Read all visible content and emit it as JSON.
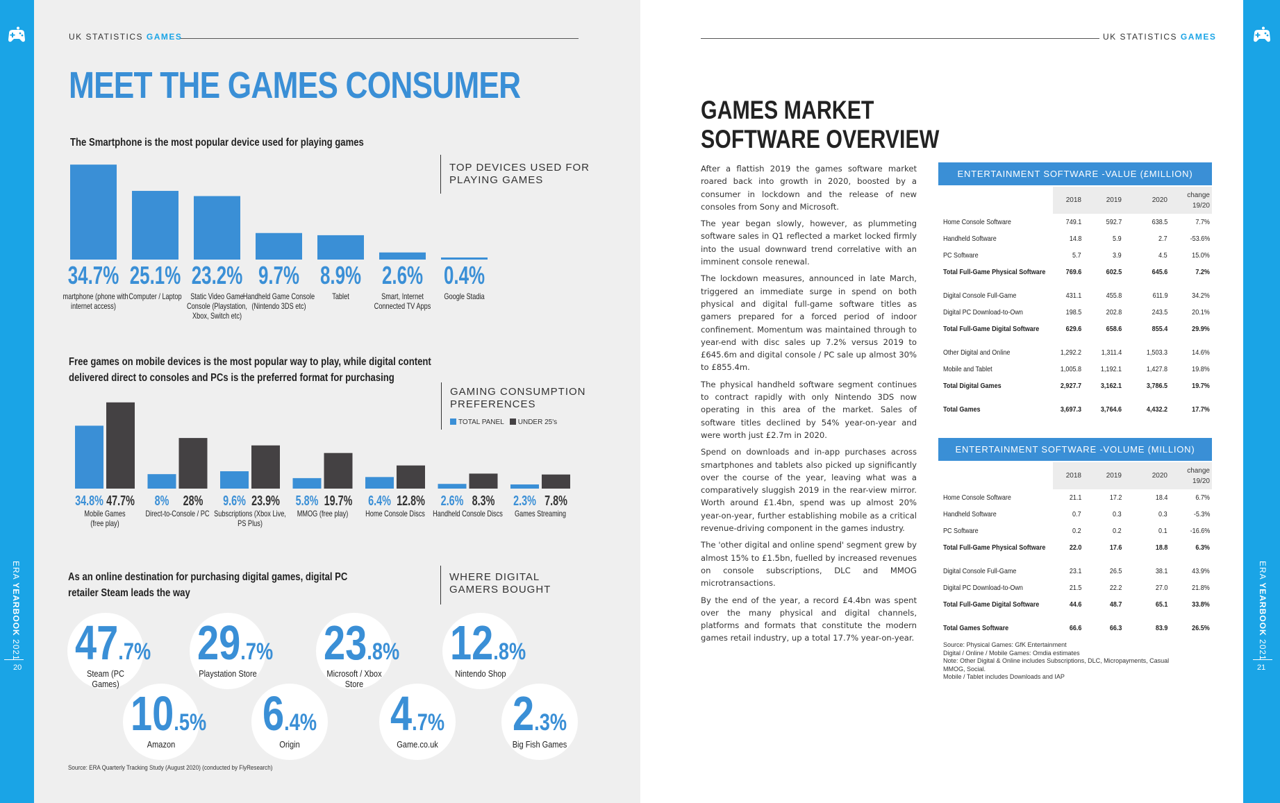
{
  "left_page": {
    "header": {
      "prefix": "UK STATISTICS ",
      "accent": "GAMES"
    },
    "title": "MEET THE GAMES CONSUMER",
    "page_number": "20",
    "sidebar": {
      "era": "ERA ",
      "yearbook": "YEARBOOK",
      "year": " 2021"
    },
    "section1": {
      "title": "The Smartphone is the most popular device used for playing games",
      "box_label": [
        "TOP DEVICES USED FOR",
        "PLAYING GAMES"
      ]
    },
    "section2": {
      "title": [
        "Free games on mobile devices is the most popular way to play, while digital content",
        "delivered direct to consoles and PCs is the preferred format for purchasing"
      ],
      "box_label": [
        "GAMING CONSUMPTION",
        "PREFERENCES"
      ],
      "legend": [
        "TOTAL PANEL",
        "UNDER 25's"
      ]
    },
    "section3": {
      "title": [
        "As an online destination for purchasing digital games, digital PC",
        "retailer Steam leads the way"
      ],
      "box_label": [
        "WHERE DIGITAL",
        "GAMERS BOUGHT"
      ]
    },
    "source": "Source: ERA Quarterly Tracking Study (August 2020) (conducted by FlyResearch)"
  },
  "chart_data": [
    {
      "type": "bar",
      "title": "TOP DEVICES USED FOR PLAYING GAMES",
      "categories": [
        "Smartphone (phone with internet access)",
        "Computer / Laptop",
        "Static Video Game Console (Playstation, Xbox, Switch etc)",
        "Handheld Game Console (Nintendo 3DS etc)",
        "Tablet",
        "Smart, Internet Connected TV Apps",
        "Google Stadia"
      ],
      "labels": [
        [
          "Smartphone (phone with",
          "internet access)"
        ],
        [
          "Computer / Laptop"
        ],
        [
          "Static Video Game",
          "Console (Playstation,",
          "Xbox, Switch etc)"
        ],
        [
          "Handheld Game Console",
          "(Nintendo 3DS etc)"
        ],
        [
          "Tablet"
        ],
        [
          "Smart, Internet",
          "Connected TV Apps"
        ],
        [
          "Google Stadia"
        ]
      ],
      "values": [
        34.7,
        25.1,
        23.2,
        9.7,
        8.9,
        2.6,
        0.4
      ],
      "value_labels": [
        "34.7%",
        "25.1%",
        "23.2%",
        "9.7%",
        "8.9%",
        "2.6%",
        "0.4%"
      ],
      "color": "#3a8fd6"
    },
    {
      "type": "bar",
      "title": "GAMING CONSUMPTION PREFERENCES",
      "categories": [
        "Mobile Games (free play)",
        "Direct-to-Console / PC",
        "Subscriptions (Xbox Live, PS Plus)",
        "MMOG (free play)",
        "Home Console Discs",
        "Handheld Console Discs",
        "Games Streaming"
      ],
      "labels": [
        [
          "Mobile Games",
          "(free play)"
        ],
        [
          "Direct-to-Console / PC"
        ],
        [
          "Subscriptions (Xbox Live,",
          "PS Plus)"
        ],
        [
          "MMOG (free play)"
        ],
        [
          "Home Console Discs"
        ],
        [
          "Handheld Console Discs"
        ],
        [
          "Games Streaming"
        ]
      ],
      "series": [
        {
          "name": "TOTAL PANEL",
          "values": [
            34.8,
            8,
            9.6,
            5.8,
            6.4,
            2.6,
            2.3
          ],
          "labels": [
            "34.8%",
            "8%",
            "9.6%",
            "5.8%",
            "6.4%",
            "2.6%",
            "2.3%"
          ],
          "color": "#3a8fd6"
        },
        {
          "name": "UNDER 25's",
          "values": [
            47.7,
            28,
            23.9,
            19.7,
            12.8,
            8.3,
            7.8
          ],
          "labels": [
            "47.7%",
            "28%",
            "23.9%",
            "19.7%",
            "12.8%",
            "8.3%",
            "7.8%"
          ],
          "color": "#444143"
        }
      ]
    }
  ],
  "retailers": [
    {
      "big": "47",
      "small": ".7%",
      "name": "Steam (PC Games)"
    },
    {
      "big": "29",
      "small": ".7%",
      "name": "Playstation Store"
    },
    {
      "big": "23",
      "small": ".8%",
      "name": "Microsoft / Xbox Store"
    },
    {
      "big": "12",
      "small": ".8%",
      "name": "Nintendo Shop"
    },
    {
      "big": "10",
      "small": ".5%",
      "name": "Amazon"
    },
    {
      "big": "6",
      "small": ".4%",
      "name": "Origin"
    },
    {
      "big": "4",
      "small": ".7%",
      "name": "Game.co.uk"
    },
    {
      "big": "2",
      "small": ".3%",
      "name": "Big Fish Games"
    }
  ],
  "right_page": {
    "header": {
      "prefix": "UK STATISTICS ",
      "accent": "GAMES"
    },
    "title": [
      "GAMES MARKET",
      "SOFTWARE OVERVIEW"
    ],
    "page_number": "21",
    "sidebar": {
      "era": "ERA ",
      "yearbook": "YEARBOOK",
      "year": " 2021"
    },
    "paragraphs": [
      "After a flattish 2019 the games software market roared back into growth in 2020, boosted by a consumer in lockdown and the release of new consoles from Sony and Microsoft.",
      "The year began slowly, however, as plummeting software sales in Q1 reflected a market locked firmly into the usual downward trend correlative with an imminent console renewal.",
      "The lockdown measures, announced in late March, triggered an immediate surge in spend on both physical and digital full-game software titles as gamers prepared for a forced period of indoor confinement. Momentum was maintained through to year-end with disc sales up 7.2% versus 2019 to £645.6m and digital console / PC sale up almost 30% to £855.4m.",
      "The physical handheld software segment continues to contract rapidly with only Nintendo 3DS now operating in this area of the market. Sales of software titles declined by 54% year-on-year and were worth just £2.7m in 2020.",
      "Spend on downloads and in-app purchases across smartphones and tablets also picked up significantly over the course of the year, leaving what was a comparatively sluggish 2019 in the rear-view mirror. Worth around £1.4bn, spend was up almost 20% year-on-year, further establishing mobile as a critical revenue-driving component in the games industry.",
      "The 'other digital and online spend' segment grew by almost 15% to £1.5bn, fuelled by increased revenues on console subscriptions, DLC and MMOG microtransactions.",
      "By the end of the year, a record £4.4bn was spent over the many physical and digital channels, platforms and formats that constitute the modern games retail industry, up a total 17.7% year-on-year."
    ],
    "table_columns": [
      "2018",
      "2019",
      "2020",
      "change",
      "19/20"
    ],
    "value_table": {
      "title": "ENTERTAINMENT SOFTWARE -VALUE (£MILLION)",
      "rows": [
        {
          "name": "Home Console Software",
          "v": [
            "749.1",
            "592.7",
            "638.5",
            "7.7%"
          ],
          "bold": false
        },
        {
          "name": "Handheld Software",
          "v": [
            "14.8",
            "5.9",
            "2.7",
            "-53.6%"
          ],
          "bold": false
        },
        {
          "name": "PC Software",
          "v": [
            "5.7",
            "3.9",
            "4.5",
            "15.0%"
          ],
          "bold": false
        },
        {
          "name": "Total Full-Game Physical Software",
          "v": [
            "769.6",
            "602.5",
            "645.6",
            "7.2%"
          ],
          "bold": true
        },
        {
          "name": "",
          "v": [
            "",
            "",
            "",
            ""
          ],
          "bold": false,
          "spacer": true
        },
        {
          "name": "Digital Console Full-Game",
          "v": [
            "431.1",
            "455.8",
            "611.9",
            "34.2%"
          ],
          "bold": false
        },
        {
          "name": "Digital PC Download-to-Own",
          "v": [
            "198.5",
            "202.8",
            "243.5",
            "20.1%"
          ],
          "bold": false
        },
        {
          "name": "Total Full-Game Digital Software",
          "v": [
            "629.6",
            "658.6",
            "855.4",
            "29.9%"
          ],
          "bold": true
        },
        {
          "name": "",
          "v": [
            "",
            "",
            "",
            ""
          ],
          "bold": false,
          "spacer": true
        },
        {
          "name": "Other Digital and Online",
          "v": [
            "1,292.2",
            "1,311.4",
            "1,503.3",
            "14.6%"
          ],
          "bold": false
        },
        {
          "name": "Mobile and Tablet",
          "v": [
            "1,005.8",
            "1,192.1",
            "1,427.8",
            "19.8%"
          ],
          "bold": false
        },
        {
          "name": "Total Digital Games",
          "v": [
            "2,927.7",
            "3,162.1",
            "3,786.5",
            "19.7%"
          ],
          "bold": true
        },
        {
          "name": "",
          "v": [
            "",
            "",
            "",
            ""
          ],
          "bold": false,
          "spacer": true
        },
        {
          "name": "Total Games",
          "v": [
            "3,697.3",
            "3,764.6",
            "4,432.2",
            "17.7%"
          ],
          "bold": true
        }
      ]
    },
    "volume_table": {
      "title": "ENTERTAINMENT SOFTWARE -VOLUME (MILLION)",
      "rows": [
        {
          "name": "Home Console Software",
          "v": [
            "21.1",
            "17.2",
            "18.4",
            "6.7%"
          ],
          "bold": false
        },
        {
          "name": "Handheld Software",
          "v": [
            "0.7",
            "0.3",
            "0.3",
            "-5.3%"
          ],
          "bold": false
        },
        {
          "name": "PC Software",
          "v": [
            "0.2",
            "0.2",
            "0.1",
            "-16.6%"
          ],
          "bold": false
        },
        {
          "name": "Total Full-Game Physical Software",
          "v": [
            "22.0",
            "17.6",
            "18.8",
            "6.3%"
          ],
          "bold": true
        },
        {
          "name": "",
          "v": [
            "",
            "",
            "",
            ""
          ],
          "bold": false,
          "spacer": true
        },
        {
          "name": "Digital Console Full-Game",
          "v": [
            "23.1",
            "26.5",
            "38.1",
            "43.9%"
          ],
          "bold": false
        },
        {
          "name": "Digital PC Download-to-Own",
          "v": [
            "21.5",
            "22.2",
            "27.0",
            "21.8%"
          ],
          "bold": false
        },
        {
          "name": "Total Full-Game Digital Software",
          "v": [
            "44.6",
            "48.7",
            "65.1",
            "33.8%"
          ],
          "bold": true
        },
        {
          "name": "",
          "v": [
            "",
            "",
            "",
            ""
          ],
          "bold": false,
          "spacer": true
        },
        {
          "name": "Total Games Software",
          "v": [
            "66.6",
            "66.3",
            "83.9",
            "26.5%"
          ],
          "bold": true
        }
      ]
    },
    "sources": [
      "Source: Physical Games: GfK Entertainment",
      "Digital / Online / Mobile Games: Omdia estimates",
      "Note: Other Digital & Online includes Subscriptions, DLC, Micropayments, Casual",
      "MMOG, Social.",
      "Mobile / Tablet includes Downloads and IAP"
    ]
  },
  "colors": {
    "accent": "#1aa4e6",
    "chart_blue": "#3a8fd6",
    "chart_dark": "#444143",
    "left_page_bg": "#efefef"
  }
}
